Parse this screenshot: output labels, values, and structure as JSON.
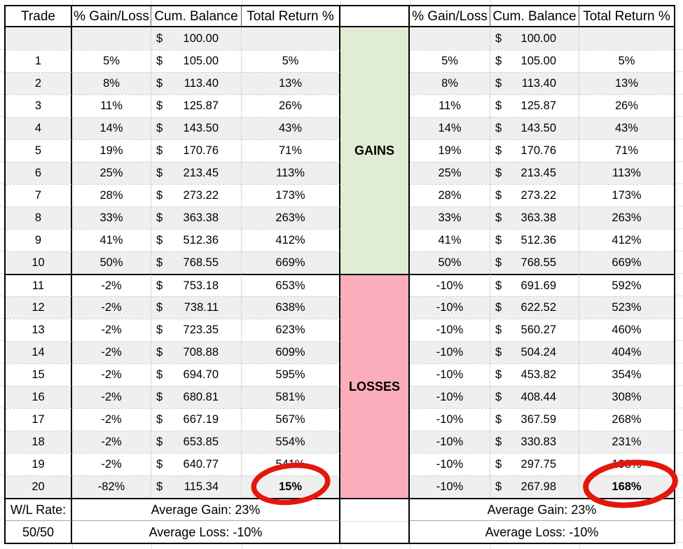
{
  "left_table": {
    "headers": [
      "Trade",
      "% Gain/Loss",
      "Cum. Balance",
      "Total Return %"
    ],
    "currency_symbol": "$",
    "rows": [
      {
        "trade": "",
        "gain": "",
        "balance": "100.00",
        "ret": ""
      },
      {
        "trade": "1",
        "gain": "5%",
        "balance": "105.00",
        "ret": "5%"
      },
      {
        "trade": "2",
        "gain": "8%",
        "balance": "113.40",
        "ret": "13%"
      },
      {
        "trade": "3",
        "gain": "11%",
        "balance": "125.87",
        "ret": "26%"
      },
      {
        "trade": "4",
        "gain": "14%",
        "balance": "143.50",
        "ret": "43%"
      },
      {
        "trade": "5",
        "gain": "19%",
        "balance": "170.76",
        "ret": "71%"
      },
      {
        "trade": "6",
        "gain": "25%",
        "balance": "213.45",
        "ret": "113%"
      },
      {
        "trade": "7",
        "gain": "28%",
        "balance": "273.22",
        "ret": "173%"
      },
      {
        "trade": "8",
        "gain": "33%",
        "balance": "363.38",
        "ret": "263%"
      },
      {
        "trade": "9",
        "gain": "41%",
        "balance": "512.36",
        "ret": "412%"
      },
      {
        "trade": "10",
        "gain": "50%",
        "balance": "768.55",
        "ret": "669%"
      },
      {
        "trade": "11",
        "gain": "-2%",
        "balance": "753.18",
        "ret": "653%"
      },
      {
        "trade": "12",
        "gain": "-2%",
        "balance": "738.11",
        "ret": "638%"
      },
      {
        "trade": "13",
        "gain": "-2%",
        "balance": "723.35",
        "ret": "623%"
      },
      {
        "trade": "14",
        "gain": "-2%",
        "balance": "708.88",
        "ret": "609%"
      },
      {
        "trade": "15",
        "gain": "-2%",
        "balance": "694.70",
        "ret": "595%"
      },
      {
        "trade": "16",
        "gain": "-2%",
        "balance": "680.81",
        "ret": "581%"
      },
      {
        "trade": "17",
        "gain": "-2%",
        "balance": "667.19",
        "ret": "567%"
      },
      {
        "trade": "18",
        "gain": "-2%",
        "balance": "653.85",
        "ret": "554%"
      },
      {
        "trade": "19",
        "gain": "-2%",
        "balance": "640.77",
        "ret": "541%"
      },
      {
        "trade": "20",
        "gain": "-82%",
        "balance": "115.34",
        "ret": "15%"
      }
    ],
    "footer": {
      "rate_label": "W/L Rate:",
      "rate_value": "50/50",
      "avg_gain": "Average Gain: 23%",
      "avg_loss": "Average Loss: -10%"
    }
  },
  "divider": {
    "gains_label": "GAINS",
    "losses_label": "LOSSES",
    "gains_color": "#E0ECD3",
    "losses_color": "#FCADBB"
  },
  "right_table": {
    "headers": [
      "% Gain/Loss",
      "Cum. Balance",
      "Total Return %"
    ],
    "currency_symbol": "$",
    "rows": [
      {
        "gain": "",
        "balance": "100.00",
        "ret": ""
      },
      {
        "gain": "5%",
        "balance": "105.00",
        "ret": "5%"
      },
      {
        "gain": "8%",
        "balance": "113.40",
        "ret": "13%"
      },
      {
        "gain": "11%",
        "balance": "125.87",
        "ret": "26%"
      },
      {
        "gain": "14%",
        "balance": "143.50",
        "ret": "43%"
      },
      {
        "gain": "19%",
        "balance": "170.76",
        "ret": "71%"
      },
      {
        "gain": "25%",
        "balance": "213.45",
        "ret": "113%"
      },
      {
        "gain": "28%",
        "balance": "273.22",
        "ret": "173%"
      },
      {
        "gain": "33%",
        "balance": "363.38",
        "ret": "263%"
      },
      {
        "gain": "41%",
        "balance": "512.36",
        "ret": "412%"
      },
      {
        "gain": "50%",
        "balance": "768.55",
        "ret": "669%"
      },
      {
        "gain": "-10%",
        "balance": "691.69",
        "ret": "592%"
      },
      {
        "gain": "-10%",
        "balance": "622.52",
        "ret": "523%"
      },
      {
        "gain": "-10%",
        "balance": "560.27",
        "ret": "460%"
      },
      {
        "gain": "-10%",
        "balance": "504.24",
        "ret": "404%"
      },
      {
        "gain": "-10%",
        "balance": "453.82",
        "ret": "354%"
      },
      {
        "gain": "-10%",
        "balance": "408.44",
        "ret": "308%"
      },
      {
        "gain": "-10%",
        "balance": "367.59",
        "ret": "268%"
      },
      {
        "gain": "-10%",
        "balance": "330.83",
        "ret": "231%"
      },
      {
        "gain": "-10%",
        "balance": "297.75",
        "ret": "198%"
      },
      {
        "gain": "-10%",
        "balance": "267.98",
        "ret": "168%"
      }
    ],
    "footer": {
      "avg_gain": "Average Gain: 23%",
      "avg_loss": "Average Loss: -10%"
    }
  },
  "annotations": {
    "left_circled_value": "15%",
    "right_circled_value": "168%",
    "circle_color": "#E3170D"
  }
}
